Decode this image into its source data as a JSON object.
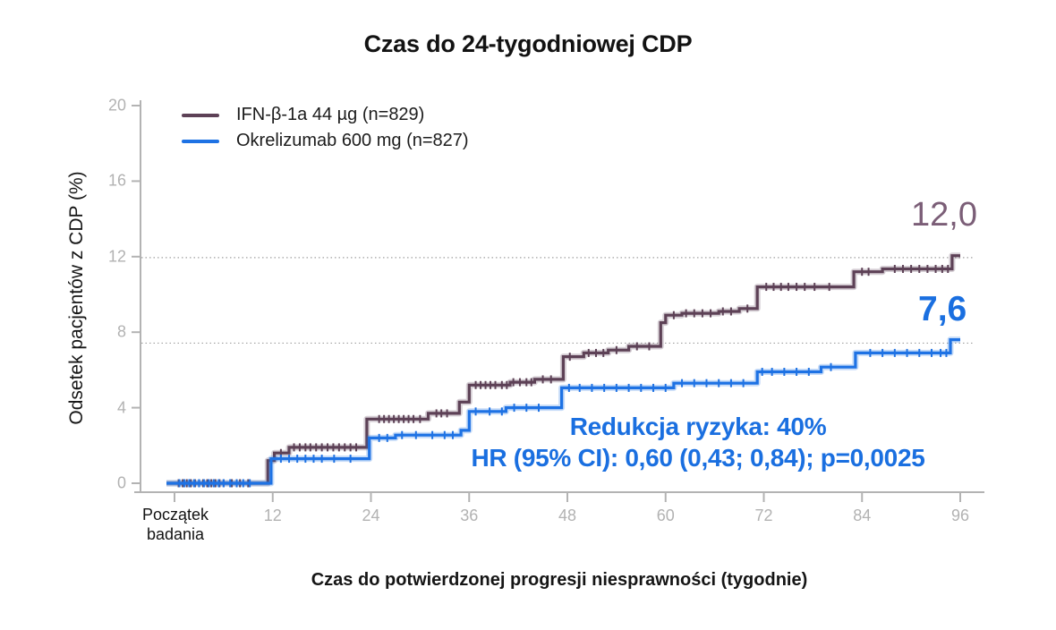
{
  "title": "Czas do 24-tygodniowej CDP",
  "legend": [
    {
      "label": "IFN-β-1a 44 µg (n=829)",
      "color": "#5d4156"
    },
    {
      "label": "Okrelizumab 600 mg (n=827)",
      "color": "#1e72e4"
    }
  ],
  "y_axis": {
    "title": "Odsetek pacjentów z CDP (%)",
    "ticks": [
      0,
      4,
      8,
      12,
      16,
      20
    ]
  },
  "x_axis": {
    "title": "Czas do potwierdzonej progresji niesprawności (tygodnie)",
    "origin_label_lines": [
      "Początek",
      "badania"
    ],
    "ticks": [
      12,
      24,
      36,
      48,
      60,
      72,
      84,
      96
    ]
  },
  "annotation": {
    "line1": "Redukcja ryzyka: 40%",
    "line2": "HR (95% CI): 0,60 (0,43; 0,84); p=0,0025",
    "color": "#1a6fe0"
  },
  "end_labels": [
    {
      "text": "12,0",
      "color": "#7b5e77"
    },
    {
      "text": "7,6",
      "color": "#1a6fe0"
    }
  ],
  "colors": {
    "axis_gray": "#b3b3b3",
    "tick_label_gray": "#b2b2b2",
    "gridline_gray": "#a0a0a0",
    "title_black": "#121212"
  },
  "chart_data": {
    "type": "line",
    "subtype": "kaplan-meier-step",
    "title": "Czas do 24-tygodniowej CDP",
    "xlabel": "Czas do potwierdzonej progresji niesprawności (tygodnie)",
    "ylabel": "Odsetek pacjentów z CDP (%)",
    "xlim": [
      0,
      96
    ],
    "ylim": [
      0,
      20
    ],
    "grid": "dotted horizontal reference lines at final values only",
    "legend_position": "top-left inside plot",
    "reference_lines": [
      11.95,
      7.42
    ],
    "series": [
      {
        "id": "ifn",
        "name": "IFN-β-1a 44 µg (n=829)",
        "color": "#5d4156",
        "final_value_label": "12,0",
        "final_value": 12.0,
        "steps": [
          [
            11.4,
            1.2
          ],
          [
            12.2,
            1.6
          ],
          [
            14,
            1.9
          ],
          [
            23.5,
            3.4
          ],
          [
            31,
            3.7
          ],
          [
            34.8,
            4.3
          ],
          [
            36,
            5.2
          ],
          [
            41,
            5.35
          ],
          [
            44,
            5.5
          ],
          [
            47.5,
            6.7
          ],
          [
            50,
            6.9
          ],
          [
            53,
            7.05
          ],
          [
            55.5,
            7.25
          ],
          [
            59.4,
            8.5
          ],
          [
            60,
            8.9
          ],
          [
            62,
            9.0
          ],
          [
            66.5,
            9.1
          ],
          [
            69,
            9.25
          ],
          [
            71.2,
            10.4
          ],
          [
            83,
            11.2
          ],
          [
            86.5,
            11.35
          ],
          [
            95,
            12.05
          ]
        ],
        "censor_weeks": [
          0.5,
          1,
          1.5,
          2,
          2.5,
          3,
          3.5,
          4,
          4.5,
          5,
          5.5,
          6,
          7,
          8,
          9,
          13,
          14.6,
          15.3,
          16,
          16.6,
          17.3,
          18,
          18.7,
          19.4,
          20.1,
          20.8,
          21.5,
          22.2,
          25,
          25.6,
          26.2,
          26.8,
          27.4,
          28,
          28.6,
          29.2,
          30,
          32,
          32.6,
          33.3,
          36.8,
          37.4,
          38,
          38.6,
          39.2,
          40,
          40.6,
          41.4,
          42.2,
          43,
          43.6,
          45,
          46,
          48.3,
          50.6,
          51.5,
          52.4,
          54,
          56.5,
          58,
          61,
          62.5,
          63.5,
          64.5,
          65.5,
          67,
          68,
          70,
          72.3,
          73.2,
          74.1,
          75,
          76,
          77,
          78.2,
          80,
          84,
          84.8,
          88,
          89,
          90,
          91,
          92,
          93,
          93.8,
          94.5
        ]
      },
      {
        "id": "okrelizumab",
        "name": "Okrelizumab 600 mg (n=827)",
        "color": "#1e72e4",
        "final_value_label": "7,6",
        "final_value": 7.6,
        "steps": [
          [
            11.8,
            1.3
          ],
          [
            23.8,
            2.4
          ],
          [
            27,
            2.55
          ],
          [
            35,
            2.8
          ],
          [
            36,
            3.8
          ],
          [
            40.5,
            4.0
          ],
          [
            47.3,
            5.05
          ],
          [
            61,
            5.3
          ],
          [
            71.2,
            5.9
          ],
          [
            79,
            6.15
          ],
          [
            83.2,
            6.9
          ],
          [
            94.8,
            7.6
          ]
        ],
        "censor_weeks": [
          0.6,
          1.2,
          1.8,
          2.4,
          3,
          3.6,
          4.2,
          4.8,
          5.4,
          6,
          6.8,
          7.6,
          8.4,
          9.2,
          13,
          14,
          15,
          16,
          17,
          18,
          19.5,
          21.5,
          25,
          26,
          27.8,
          29.5,
          31.5,
          33,
          34,
          36.8,
          38.5,
          40,
          41.5,
          43,
          44.5,
          48.2,
          49.5,
          51,
          52.5,
          54,
          55.5,
          57,
          58.5,
          60,
          62,
          63.5,
          65,
          66.5,
          68,
          69.5,
          71.8,
          73,
          74.5,
          76,
          77.5,
          80.2,
          85,
          86.5,
          88,
          89.5,
          91,
          92.5,
          93.6,
          94.3
        ]
      }
    ],
    "annotations": [
      "Redukcja ryzyka: 40%",
      "HR (95% CI): 0,60 (0,43; 0,84); p=0,0025"
    ]
  }
}
